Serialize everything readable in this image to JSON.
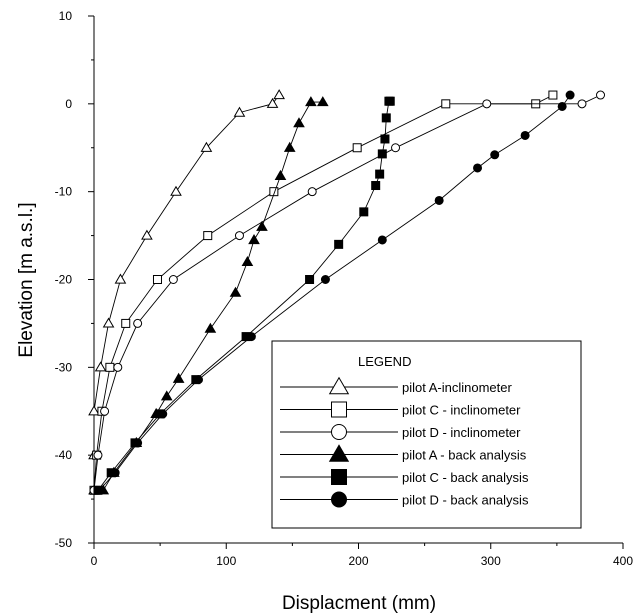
{
  "chart_data": {
    "type": "line",
    "xlabel": "Displacment (mm)",
    "ylabel": "Elevation [m a.s.l.]",
    "xlim": [
      0,
      400
    ],
    "ylim": [
      -50,
      10
    ],
    "xticks": [
      0,
      100,
      200,
      300,
      400
    ],
    "yticks": [
      -50,
      -40,
      -30,
      -20,
      -10,
      0,
      10
    ],
    "grid": false,
    "legend": {
      "title": "LEGEND",
      "position": "bottom-right"
    },
    "series": [
      {
        "name": "pilot A-inclinometer",
        "marker": "triangle-open",
        "points": [
          [
            0,
            -44
          ],
          [
            0,
            -40
          ],
          [
            0,
            -35
          ],
          [
            5,
            -30
          ],
          [
            11,
            -25
          ],
          [
            20,
            -20
          ],
          [
            40,
            -15
          ],
          [
            62,
            -10
          ],
          [
            85,
            -5
          ],
          [
            110,
            -1
          ],
          [
            135,
            0
          ],
          [
            140,
            1
          ]
        ]
      },
      {
        "name": "pilot C - inclinometer",
        "marker": "square-open",
        "points": [
          [
            0,
            -44
          ],
          [
            2,
            -40
          ],
          [
            6,
            -35
          ],
          [
            12,
            -30
          ],
          [
            24,
            -25
          ],
          [
            48,
            -20
          ],
          [
            86,
            -15
          ],
          [
            136,
            -10
          ],
          [
            199,
            -5
          ],
          [
            266,
            0
          ],
          [
            334,
            0
          ],
          [
            347,
            1
          ]
        ]
      },
      {
        "name": "pilot D - inclinometer",
        "marker": "circle-open",
        "points": [
          [
            0,
            -44
          ],
          [
            3,
            -40
          ],
          [
            8,
            -35
          ],
          [
            18,
            -30
          ],
          [
            33,
            -25
          ],
          [
            60,
            -20
          ],
          [
            110,
            -15
          ],
          [
            165,
            -10
          ],
          [
            228,
            -5
          ],
          [
            297,
            0
          ],
          [
            369,
            0
          ],
          [
            383,
            1
          ]
        ]
      },
      {
        "name": "pilot A - back analysis",
        "marker": "triangle-filled",
        "points": [
          [
            7,
            -44
          ],
          [
            15,
            -42
          ],
          [
            32,
            -38.6
          ],
          [
            47,
            -35.3
          ],
          [
            55,
            -33.3
          ],
          [
            64,
            -31.3
          ],
          [
            88,
            -25.6
          ],
          [
            107,
            -21.5
          ],
          [
            116,
            -18
          ],
          [
            121,
            -15.5
          ],
          [
            127,
            -14
          ],
          [
            141,
            -8.2
          ],
          [
            148,
            -5
          ],
          [
            155,
            -2.2
          ],
          [
            164,
            0.2
          ],
          [
            173,
            0.2
          ]
        ]
      },
      {
        "name": "pilot C - back analysis",
        "marker": "square-filled",
        "points": [
          [
            3,
            -44
          ],
          [
            13,
            -42
          ],
          [
            31,
            -38.6
          ],
          [
            50,
            -35.3
          ],
          [
            77,
            -31.4
          ],
          [
            115,
            -26.5
          ],
          [
            163,
            -20
          ],
          [
            185,
            -16
          ],
          [
            204,
            -12.3
          ],
          [
            213,
            -9.3
          ],
          [
            216,
            -8
          ],
          [
            218,
            -5.7
          ],
          [
            220,
            -4
          ],
          [
            221,
            -1.6
          ],
          [
            223,
            0.3
          ],
          [
            224,
            0.3
          ]
        ]
      },
      {
        "name": "pilot D - back analysis",
        "marker": "circle-filled",
        "points": [
          [
            4,
            -44
          ],
          [
            16,
            -42
          ],
          [
            33,
            -38.6
          ],
          [
            52,
            -35.3
          ],
          [
            79,
            -31.4
          ],
          [
            119,
            -26.5
          ],
          [
            175,
            -20
          ],
          [
            218,
            -15.5
          ],
          [
            261,
            -11
          ],
          [
            290,
            -7.3
          ],
          [
            303,
            -5.8
          ],
          [
            326,
            -3.6
          ],
          [
            354,
            -0.3
          ],
          [
            360,
            1
          ]
        ]
      }
    ]
  }
}
